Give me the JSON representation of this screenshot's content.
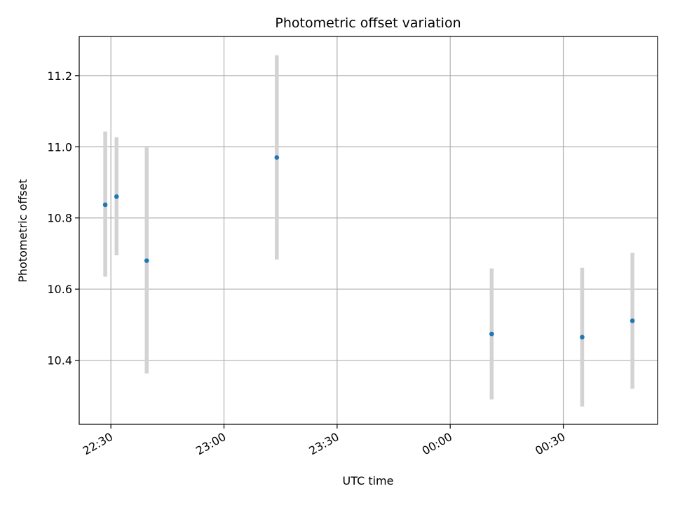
{
  "chart_data": {
    "type": "scatter",
    "title": "Photometric offset variation",
    "xlabel": "UTC time",
    "ylabel": "Photometric offset",
    "x_ticks": [
      {
        "value": 1350,
        "label": "22:30"
      },
      {
        "value": 1380,
        "label": "23:00"
      },
      {
        "value": 1410,
        "label": "23:30"
      },
      {
        "value": 1440,
        "label": "00:00"
      },
      {
        "value": 1470,
        "label": "00:30"
      }
    ],
    "y_ticks": [
      {
        "value": 10.4,
        "label": "10.4"
      },
      {
        "value": 10.6,
        "label": "10.6"
      },
      {
        "value": 10.8,
        "label": "10.8"
      },
      {
        "value": 11.0,
        "label": "11.0"
      },
      {
        "value": 11.2,
        "label": "11.2"
      }
    ],
    "xlim": [
      1341.6,
      1495.0
    ],
    "ylim": [
      10.22,
      11.31
    ],
    "grid": true,
    "points": [
      {
        "time": "22:28:30",
        "x": 1348.5,
        "y": 10.837,
        "err_low": 10.635,
        "err_high": 11.043
      },
      {
        "time": "22:31:30",
        "x": 1351.5,
        "y": 10.86,
        "err_low": 10.695,
        "err_high": 11.027
      },
      {
        "time": "22:39:30",
        "x": 1359.5,
        "y": 10.68,
        "err_low": 10.363,
        "err_high": 10.998
      },
      {
        "time": "23:14:00",
        "x": 1394.0,
        "y": 10.97,
        "err_low": 10.683,
        "err_high": 11.257
      },
      {
        "time": "00:11:00",
        "x": 1451.0,
        "y": 10.474,
        "err_low": 10.29,
        "err_high": 10.658
      },
      {
        "time": "00:35:00",
        "x": 1475.0,
        "y": 10.465,
        "err_low": 10.27,
        "err_high": 10.66
      },
      {
        "time": "00:48:20",
        "x": 1488.33,
        "y": 10.511,
        "err_low": 10.32,
        "err_high": 10.702
      }
    ],
    "colors": {
      "point": "#1f77b4",
      "errorbar": "#d3d3d3",
      "grid": "#b0b0b0"
    }
  }
}
